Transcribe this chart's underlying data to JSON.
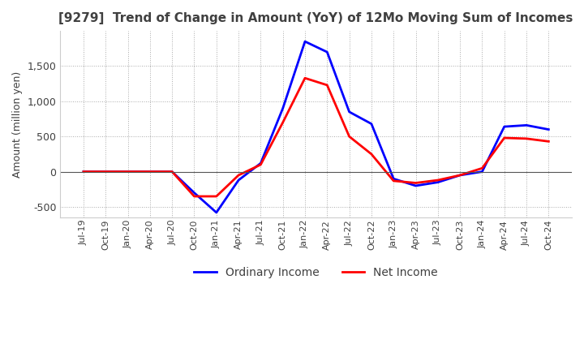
{
  "title": "[9279]  Trend of Change in Amount (YoY) of 12Mo Moving Sum of Incomes",
  "ylabel": "Amount (million yen)",
  "ylim": [
    -650,
    2000
  ],
  "yticks": [
    -500,
    0,
    500,
    1000,
    1500
  ],
  "dates": [
    "Jul-19",
    "Oct-19",
    "Jan-20",
    "Apr-20",
    "Jul-20",
    "Oct-20",
    "Jan-21",
    "Apr-21",
    "Jul-21",
    "Oct-21",
    "Jan-22",
    "Apr-22",
    "Jul-22",
    "Oct-22",
    "Jan-23",
    "Apr-23",
    "Jul-23",
    "Oct-23",
    "Jan-24",
    "Apr-24",
    "Jul-24",
    "Oct-24"
  ],
  "ordinary_income": [
    0,
    0,
    0,
    0,
    0,
    -300,
    -580,
    -120,
    120,
    900,
    1850,
    1700,
    850,
    680,
    -100,
    -200,
    -150,
    -50,
    0,
    640,
    660,
    600
  ],
  "net_income": [
    0,
    0,
    0,
    0,
    0,
    -350,
    -350,
    -50,
    100,
    700,
    1330,
    1230,
    500,
    250,
    -130,
    -160,
    -120,
    -50,
    50,
    480,
    470,
    430
  ],
  "ordinary_color": "#0000ff",
  "net_color": "#ff0000",
  "grid_color": "#aaaaaa",
  "title_color": "#404040",
  "label_color": "#404040",
  "background_color": "#ffffff"
}
